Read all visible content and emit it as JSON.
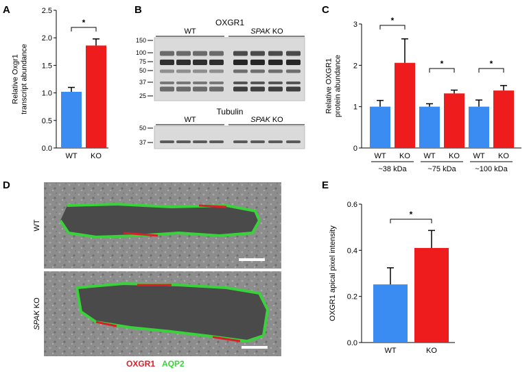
{
  "panel_labels": [
    "A",
    "B",
    "C",
    "D",
    "E"
  ],
  "colors": {
    "wt": "#3b8cf2",
    "ko": "#ee1c1c",
    "oxgr1_stain": "#d8202a",
    "aqp2_stain": "#3ad23a",
    "blot_bg": "#d9d9d9",
    "micrograph_bg": "#8c8c8c"
  },
  "chart_data": [
    {
      "panel": "A",
      "type": "bar",
      "categories": [
        "WT",
        "KO"
      ],
      "values": [
        1.02,
        1.86
      ],
      "errors": [
        0.08,
        0.12
      ],
      "ylabel_lines": [
        "Relative Oxgr1",
        "transcript abundance"
      ],
      "ylim": [
        0,
        2.5
      ],
      "yticks": [
        "0.0",
        "0.5",
        "1.0",
        "1.5",
        "2.0",
        "2.5"
      ],
      "significance": "*"
    },
    {
      "panel": "C",
      "type": "bar",
      "groups": [
        "~38 kDa",
        "~75 kDa",
        "~100 kDa"
      ],
      "categories": [
        "WT",
        "KO",
        "WT",
        "KO",
        "WT",
        "KO"
      ],
      "values": [
        1.0,
        2.06,
        1.0,
        1.32,
        1.0,
        1.39
      ],
      "errors": [
        0.15,
        0.58,
        0.07,
        0.08,
        0.16,
        0.12
      ],
      "ylabel_lines": [
        "Relative OXGR1",
        "protein abundance"
      ],
      "ylim": [
        0,
        3
      ],
      "yticks": [
        "0",
        "1",
        "2",
        "3"
      ],
      "significance": [
        "*",
        "*",
        "*"
      ]
    },
    {
      "panel": "E",
      "type": "bar",
      "categories": [
        "WT",
        "KO"
      ],
      "values": [
        0.252,
        0.41
      ],
      "errors": [
        0.072,
        0.076
      ],
      "ylabel": "OXGR1 apical pixel intensity",
      "ylim": [
        0,
        0.6
      ],
      "yticks": [
        "0.0",
        "0.2",
        "0.4",
        "0.6"
      ],
      "significance": "*"
    }
  ],
  "blot": {
    "top_title": "OXGR1",
    "bottom_title": "Tubulin",
    "wt_label": "WT",
    "ko_label_italic": "SPAK",
    "ko_label_rest": " KO",
    "top_markers": [
      "150",
      "100",
      "75",
      "50",
      "37",
      "25"
    ],
    "bottom_markers": [
      "50",
      "37"
    ]
  },
  "micrograph": {
    "row_labels": [
      {
        "italic": "",
        "rest": "WT"
      },
      {
        "italic": "SPAK",
        "rest": " KO"
      }
    ],
    "legend_oxgr1": "OXGR1",
    "legend_aqp2": "AQP2"
  }
}
